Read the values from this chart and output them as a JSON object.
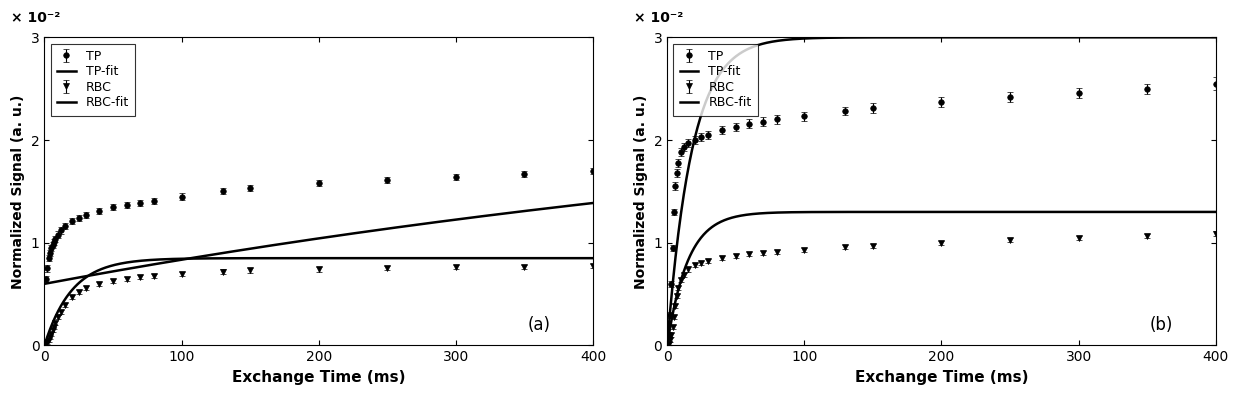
{
  "panel_a": {
    "label": "(a)",
    "TP_data_x": [
      1,
      2,
      3,
      4,
      5,
      6,
      7,
      8,
      10,
      12,
      15,
      20,
      25,
      30,
      40,
      50,
      60,
      70,
      80,
      100,
      130,
      150,
      200,
      250,
      300,
      350,
      400
    ],
    "TP_data_y": [
      0.0065,
      0.0075,
      0.0085,
      0.009,
      0.0095,
      0.0098,
      0.0101,
      0.0104,
      0.0108,
      0.0112,
      0.0116,
      0.0121,
      0.0124,
      0.0127,
      0.0131,
      0.0135,
      0.0137,
      0.0139,
      0.0141,
      0.0145,
      0.015,
      0.0153,
      0.0158,
      0.0161,
      0.0164,
      0.0167,
      0.017
    ],
    "TP_err": [
      0.0003,
      0.0003,
      0.0003,
      0.0003,
      0.0003,
      0.0003,
      0.0003,
      0.0003,
      0.0003,
      0.0003,
      0.0003,
      0.0003,
      0.0003,
      0.0003,
      0.0003,
      0.0003,
      0.0003,
      0.0003,
      0.0003,
      0.0003,
      0.0003,
      0.0003,
      0.0003,
      0.0003,
      0.0003,
      0.0003,
      0.0003
    ],
    "RBC_data_x": [
      1,
      2,
      3,
      4,
      5,
      6,
      7,
      8,
      10,
      12,
      15,
      20,
      25,
      30,
      40,
      50,
      60,
      70,
      80,
      100,
      130,
      150,
      200,
      250,
      300,
      350,
      400
    ],
    "RBC_data_y": [
      0.0001,
      0.0003,
      0.0005,
      0.0008,
      0.0011,
      0.0015,
      0.0018,
      0.0022,
      0.0028,
      0.0033,
      0.0039,
      0.0047,
      0.0052,
      0.0056,
      0.006,
      0.0063,
      0.0065,
      0.0067,
      0.0068,
      0.007,
      0.0072,
      0.0073,
      0.0074,
      0.0075,
      0.0076,
      0.0076,
      0.0077
    ],
    "RBC_err": [
      0.0002,
      0.0002,
      0.0002,
      0.0002,
      0.0002,
      0.0002,
      0.0002,
      0.0002,
      0.0002,
      0.0002,
      0.0002,
      0.0002,
      0.0002,
      0.0002,
      0.0002,
      0.0002,
      0.0002,
      0.0002,
      0.0002,
      0.0002,
      0.0002,
      0.0002,
      0.0002,
      0.0002,
      0.0002,
      0.0002,
      0.0002
    ],
    "TP_fit_params": [
      0.006,
      0.02,
      800.0
    ],
    "RBC_fit_params": [
      0.0,
      0.0085,
      20.0
    ]
  },
  "panel_b": {
    "label": "(b)",
    "TP_data_x": [
      1,
      2,
      3,
      4,
      5,
      6,
      7,
      8,
      10,
      12,
      15,
      20,
      25,
      30,
      40,
      50,
      60,
      70,
      80,
      100,
      130,
      150,
      200,
      250,
      300,
      350,
      400
    ],
    "TP_data_y": [
      0.001,
      0.003,
      0.006,
      0.0095,
      0.013,
      0.0155,
      0.0168,
      0.0178,
      0.0188,
      0.0193,
      0.0197,
      0.02,
      0.0203,
      0.0205,
      0.021,
      0.0213,
      0.0216,
      0.0218,
      0.022,
      0.0223,
      0.0228,
      0.0231,
      0.0237,
      0.0242,
      0.0246,
      0.025,
      0.0255
    ],
    "TP_err": [
      0.0003,
      0.0003,
      0.0003,
      0.0003,
      0.0003,
      0.0004,
      0.0004,
      0.0004,
      0.0004,
      0.0004,
      0.0004,
      0.0004,
      0.0004,
      0.0004,
      0.0004,
      0.0004,
      0.0004,
      0.0004,
      0.0004,
      0.0004,
      0.0004,
      0.0005,
      0.0005,
      0.0005,
      0.0005,
      0.0005,
      0.0006
    ],
    "RBC_data_x": [
      1,
      2,
      3,
      4,
      5,
      6,
      7,
      8,
      10,
      12,
      15,
      20,
      25,
      30,
      40,
      50,
      60,
      70,
      80,
      100,
      130,
      150,
      200,
      250,
      300,
      350,
      400
    ],
    "RBC_data_y": [
      0.0001,
      0.0005,
      0.001,
      0.0018,
      0.0028,
      0.0038,
      0.0048,
      0.0056,
      0.0064,
      0.0069,
      0.0074,
      0.0078,
      0.008,
      0.0082,
      0.0085,
      0.0087,
      0.0089,
      0.009,
      0.0091,
      0.0093,
      0.0096,
      0.0097,
      0.01,
      0.0103,
      0.0105,
      0.0107,
      0.0109
    ],
    "RBC_err": [
      0.0002,
      0.0002,
      0.0002,
      0.0002,
      0.0002,
      0.0002,
      0.0002,
      0.0002,
      0.0002,
      0.0002,
      0.0002,
      0.0002,
      0.0002,
      0.0002,
      0.0002,
      0.0002,
      0.0002,
      0.0002,
      0.0002,
      0.0002,
      0.0002,
      0.0002,
      0.0002,
      0.0002,
      0.0002,
      0.0002,
      0.0002
    ],
    "TP_fit_params": [
      0.0,
      0.03,
      18.0
    ],
    "RBC_fit_params": [
      0.0,
      0.013,
      15.0
    ]
  },
  "xlim": [
    0,
    400
  ],
  "ylim": [
    0,
    0.03
  ],
  "yticks": [
    0.0,
    0.01,
    0.02,
    0.03
  ],
  "ytick_labels": [
    "0",
    "1",
    "2",
    "3"
  ],
  "xticks": [
    0,
    100,
    200,
    300,
    400
  ],
  "xlabel": "Exchange Time (ms)",
  "ylabel": "Normalized Signal (a. u.)",
  "scale_label": "× 10⁻²",
  "legend_entries": [
    "TP",
    "TP-fit",
    "RBC",
    "RBC-fit"
  ],
  "color": "#000000",
  "bg_color": "#ffffff",
  "linewidth": 1.8,
  "markersize": 4,
  "capsize": 2,
  "elinewidth": 0.8
}
